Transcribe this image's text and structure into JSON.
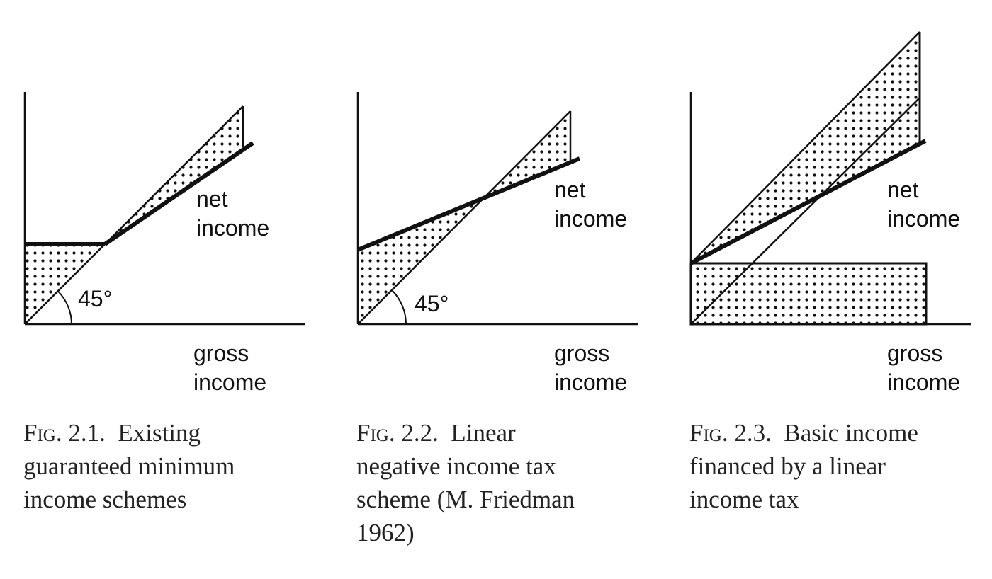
{
  "figures": [
    {
      "angle_label": "45°",
      "net_label_1": "net",
      "net_label_2": "income",
      "gross_label_1": "gross",
      "gross_label_2": "income",
      "caption_prefix": "Fig.",
      "caption_number": "2.1.",
      "caption_line1": "Existing",
      "caption_line2": "guaranteed minimum",
      "caption_line3": "income schemes",
      "caption_line4": ""
    },
    {
      "angle_label": "45°",
      "net_label_1": "net",
      "net_label_2": "income",
      "gross_label_1": "gross",
      "gross_label_2": "income",
      "caption_prefix": "Fig.",
      "caption_number": "2.2.",
      "caption_line1": "Linear",
      "caption_line2": "negative income tax",
      "caption_line3": "scheme (M. Friedman",
      "caption_line4": "1962)"
    },
    {
      "angle_label": "",
      "net_label_1": "net",
      "net_label_2": "income",
      "gross_label_1": "gross",
      "gross_label_2": "income",
      "caption_prefix": "Fig.",
      "caption_number": "2.3.",
      "caption_line1": "Basic income",
      "caption_line2": "financed by a linear",
      "caption_line3": "income tax",
      "caption_line4": ""
    }
  ]
}
